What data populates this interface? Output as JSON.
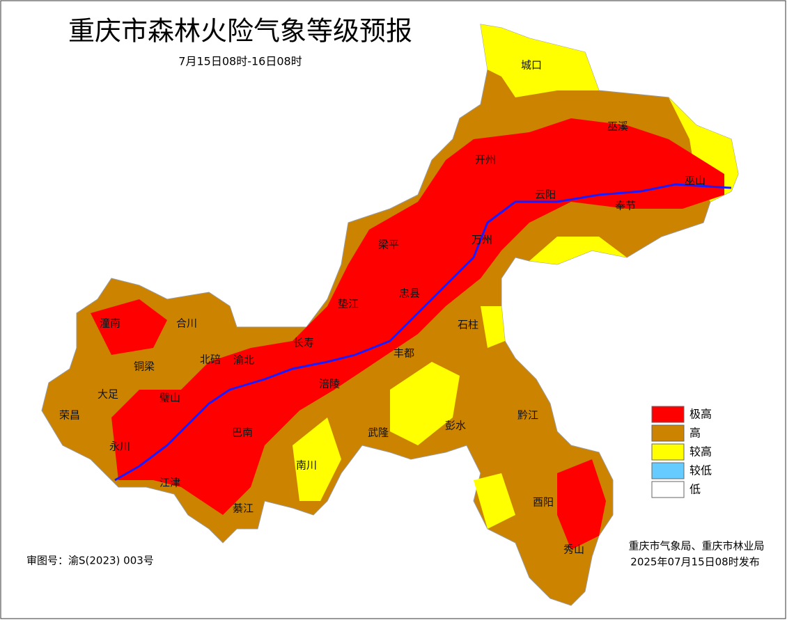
{
  "header": {
    "title": "重庆市森林火险气象等级预报",
    "subtitle": "7月15日08时-16日08时"
  },
  "districts": [
    "城口",
    "巫溪",
    "开州",
    "巫山",
    "云阳",
    "奉节",
    "万州",
    "梁平",
    "忠县",
    "垫江",
    "石柱",
    "潼南",
    "合川",
    "长寿",
    "丰都",
    "铜梁",
    "北碚",
    "渝北",
    "涪陵",
    "大足",
    "璧山",
    "荣昌",
    "巴南",
    "武隆",
    "彭水",
    "黔江",
    "永川",
    "南川",
    "江津",
    "綦江",
    "酉阳",
    "秀山"
  ],
  "legend": [
    {
      "label": "极高",
      "color": "#ff0000"
    },
    {
      "label": "高",
      "color": "#cc8400"
    },
    {
      "label": "较高",
      "color": "#ffff00"
    },
    {
      "label": "较低",
      "color": "#66ccff"
    },
    {
      "label": "低",
      "color": "#ffffff"
    }
  ],
  "footer": {
    "issuer": "重庆市气象局、重庆市林业局",
    "issued": "2025年07月15日08时发布",
    "approval": "审图号：渝S(2023) 003号"
  }
}
